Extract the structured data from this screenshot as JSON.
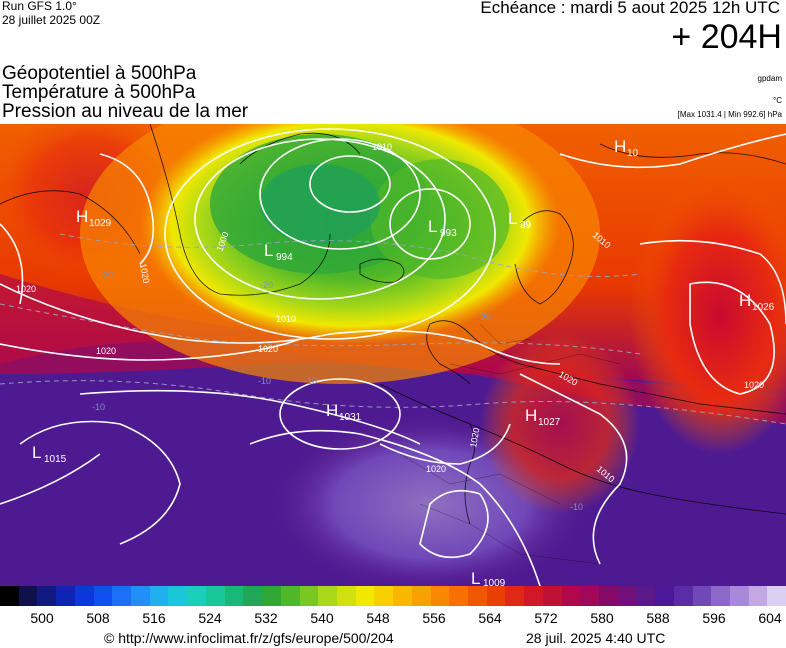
{
  "header": {
    "run": "Run GFS 1.0°",
    "run_date": "28 juillet 2025 00Z",
    "echeance": "Echéance : mardi 5 aout 2025 12h UTC",
    "offset": "+ 204H"
  },
  "titles": {
    "line1": "Géopotentiel à 500hPa",
    "line2": "Température à 500hPa",
    "line3": "Pression au niveau de la mer"
  },
  "units": {
    "geopotential": "gpdam",
    "temperature": "°C",
    "pressure_range": "[Max 1031.4 | Min 992.6] hPa"
  },
  "pressure_centers": [
    {
      "type": "H",
      "value": "1029"
    },
    {
      "type": "H",
      "value": "1031"
    },
    {
      "type": "H",
      "value": "1027"
    },
    {
      "type": "H",
      "value": "1026"
    },
    {
      "type": "H",
      "value": "10"
    },
    {
      "type": "L",
      "value": "994"
    },
    {
      "type": "L",
      "value": "993"
    },
    {
      "type": "L",
      "value": "99"
    },
    {
      "type": "L",
      "value": "1015"
    },
    {
      "type": "L",
      "value": "1009"
    }
  ],
  "isobar_labels": [
    "1010",
    "1000",
    "1020",
    "1020",
    "1020",
    "1010",
    "1020",
    "1020",
    "1020",
    "1010",
    "1020",
    "1010",
    "1020"
  ],
  "isotherm_labels": [
    "-20",
    "-20",
    "-20",
    "-10",
    "-10",
    "-10",
    "-10"
  ],
  "colorbar": {
    "colors": [
      "#000000",
      "#10104a",
      "#101a80",
      "#0e24b4",
      "#0d36dc",
      "#1050f0",
      "#1a70f8",
      "#2090f8",
      "#20b0f0",
      "#18c8d8",
      "#18d0b8",
      "#18c898",
      "#18b878",
      "#20a858",
      "#30a838",
      "#50b828",
      "#78c820",
      "#a8d818",
      "#d0e010",
      "#f0e800",
      "#f8d000",
      "#f8b800",
      "#f8a000",
      "#f88800",
      "#f87000",
      "#f05800",
      "#e84000",
      "#e02818",
      "#d01828",
      "#c01038",
      "#b00848",
      "#a00858",
      "#880868",
      "#701078",
      "#5a1888",
      "#4a1898",
      "#5a2ca8",
      "#7048b8",
      "#8c68c8",
      "#a888d8",
      "#c4a8e4",
      "#dcd0f0"
    ],
    "ticks": [
      "500",
      "508",
      "516",
      "524",
      "532",
      "540",
      "548",
      "556",
      "564",
      "572",
      "580",
      "588",
      "596",
      "604"
    ]
  },
  "footer": {
    "url": "© http://www.infoclimat.fr/z/gfs/europe/500/204",
    "date": "28 juil. 2025  4:40 UTC"
  }
}
